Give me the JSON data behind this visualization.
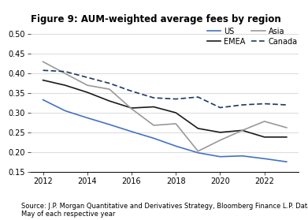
{
  "title": "Figure 9: AUM-weighted average fees by region",
  "source": "Source: J.P. Morgan Quantitative and Derivatives Strategy, Bloomberg Finance L.P. Data points as of\nMay of each respective year",
  "years": [
    2012,
    2013,
    2014,
    2015,
    2016,
    2017,
    2018,
    2019,
    2020,
    2021,
    2022,
    2023
  ],
  "US": [
    0.333,
    0.305,
    0.287,
    0.27,
    0.252,
    0.235,
    0.215,
    0.198,
    0.188,
    0.19,
    0.183,
    0.175
  ],
  "EMEA": [
    0.383,
    0.37,
    0.352,
    0.33,
    0.312,
    0.315,
    0.3,
    0.26,
    0.25,
    0.255,
    0.238,
    0.238
  ],
  "Asia": [
    0.43,
    0.4,
    0.37,
    0.36,
    0.31,
    0.268,
    0.272,
    0.202,
    0.23,
    0.255,
    0.278,
    0.262
  ],
  "Canada": [
    0.408,
    0.405,
    0.39,
    0.375,
    0.355,
    0.338,
    0.335,
    0.34,
    0.313,
    0.32,
    0.323,
    0.32
  ],
  "US_color": "#4472C4",
  "EMEA_color": "#1a1a1a",
  "Asia_color": "#999999",
  "Canada_color": "#1F3864",
  "ylim": [
    0.15,
    0.52
  ],
  "yticks": [
    0.15,
    0.2,
    0.25,
    0.3,
    0.35,
    0.4,
    0.45,
    0.5
  ],
  "xticks": [
    2012,
    2014,
    2016,
    2018,
    2020,
    2022
  ],
  "title_fontsize": 8.5,
  "label_fontsize": 7,
  "source_fontsize": 6,
  "legend_fontsize": 7
}
